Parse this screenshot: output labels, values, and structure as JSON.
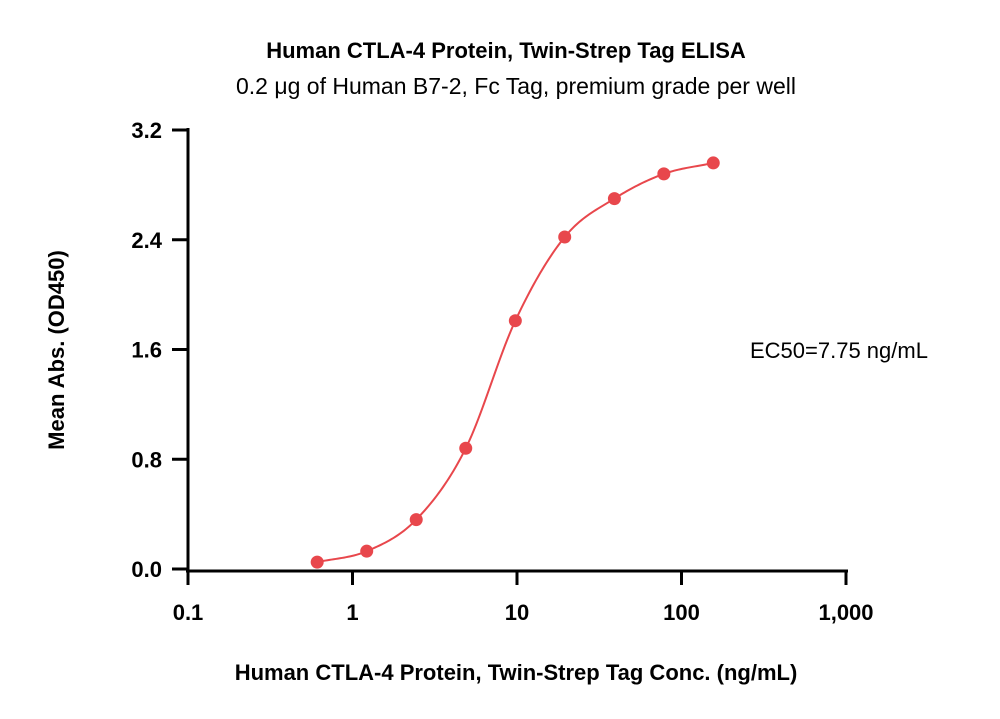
{
  "chart_data": {
    "type": "scatter",
    "title": "Human CTLA-4 Protein, Twin-Strep Tag ELISA",
    "subtitle": "0.2 μg of Human B7-2, Fc Tag, premium grade per well",
    "xlabel": "Human CTLA-4 Protein, Twin-Strep Tag Conc. (ng/mL)",
    "ylabel": "Mean Abs. (OD450)",
    "x_scale": "log",
    "xlim": [
      0.1,
      1000
    ],
    "ylim": [
      0,
      3.2
    ],
    "x_ticks": [
      {
        "value": 0.1,
        "label": "0.1"
      },
      {
        "value": 1,
        "label": "1"
      },
      {
        "value": 10,
        "label": "10"
      },
      {
        "value": 100,
        "label": "100"
      },
      {
        "value": 1000,
        "label": "1,000"
      }
    ],
    "y_ticks": [
      {
        "value": 0,
        "label": "0.0"
      },
      {
        "value": 0.8,
        "label": "0.8"
      },
      {
        "value": 1.6,
        "label": "1.6"
      },
      {
        "value": 2.4,
        "label": "2.4"
      },
      {
        "value": 3.2,
        "label": "3.2"
      }
    ],
    "grid": false,
    "series": [
      {
        "color": "#e8474c",
        "x": [
          0.61,
          1.22,
          2.44,
          4.88,
          9.77,
          19.5,
          39.1,
          78.1,
          156
        ],
        "y": [
          0.05,
          0.13,
          0.36,
          0.88,
          1.81,
          2.42,
          2.7,
          2.88,
          2.96
        ],
        "fit_curve": true
      }
    ],
    "annotation": "EC50=7.75 ng/mL"
  }
}
